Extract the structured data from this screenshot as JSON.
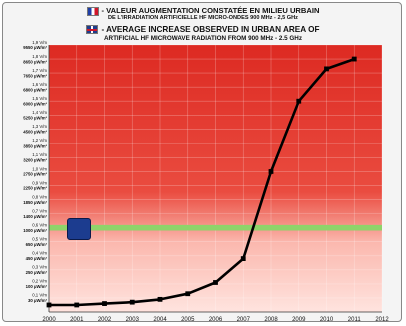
{
  "header": {
    "title_fr": "- VALEUR AUGMENTATION CONSTATÉE EN MILIEU URBAIN",
    "subtitle_fr": "DE L'IRRADIATION ARTIFICIELLE HF MICRO-ONDES 900 MHz - 2,5 GHz",
    "title_en": "- AVERAGE INCREASE OBSERVED IN URBAN AREA OF",
    "subtitle_en": "ARTIFICIAL HF MICROWAVE RADIATION FROM 900 MHz - 2.5 GHz"
  },
  "icons": {
    "flag_fr": "france-flag-icon",
    "flag_uk": "uk-flag-icon",
    "badge": "certification-seal-icon"
  },
  "colors": {
    "danger_zone": "#e03a2e",
    "transition_zone": "#ffc7bf",
    "safe_band": "#8ed36a",
    "line": "#000000"
  },
  "chart_data": {
    "type": "line",
    "title": "",
    "xlabel": "",
    "ylabel": "",
    "x": [
      2000,
      2001,
      2002,
      2003,
      2004,
      2005,
      2006,
      2007,
      2008,
      2009,
      2010,
      2011
    ],
    "series": [
      {
        "values": [
          0.05,
          0.05,
          0.06,
          0.07,
          0.09,
          0.13,
          0.21,
          0.38,
          1.0,
          1.5,
          1.73,
          1.8
        ]
      }
    ],
    "xlim": [
      2000,
      2012
    ],
    "x_ticks": [
      "2000",
      "2001",
      "2002",
      "2003",
      "2004",
      "2005",
      "2006",
      "2007",
      "2008",
      "2009",
      "2010",
      "2011",
      "2012"
    ],
    "ylim": [
      0,
      1.9
    ],
    "y_ticks": [
      {
        "v": 1.9,
        "vm": "1,9 V/m",
        "uw": "9550 µW/m²"
      },
      {
        "v": 1.8,
        "vm": "1,8 V/m",
        "uw": "8650 µW/m²"
      },
      {
        "v": 1.7,
        "vm": "1,7 V/m",
        "uw": "7650 µW/m²"
      },
      {
        "v": 1.6,
        "vm": "1,6 V/m",
        "uw": "6800 µW/m²"
      },
      {
        "v": 1.5,
        "vm": "1,5 V/m",
        "uw": "6000 µW/m²"
      },
      {
        "v": 1.4,
        "vm": "1,4 V/m",
        "uw": "5250 µW/m²"
      },
      {
        "v": 1.3,
        "vm": "1,3 V/m",
        "uw": "4500 µW/m²"
      },
      {
        "v": 1.2,
        "vm": "1,2 V/m",
        "uw": "3850 µW/m²"
      },
      {
        "v": 1.1,
        "vm": "1,1 V/m",
        "uw": "3200 µW/m²"
      },
      {
        "v": 1.0,
        "vm": "1,0 V/m",
        "uw": "2750 µW/m²"
      },
      {
        "v": 0.9,
        "vm": "0,9 V/m",
        "uw": "2250 µW/m²"
      },
      {
        "v": 0.8,
        "vm": "0,8 V/m",
        "uw": "1850 µW/m²"
      },
      {
        "v": 0.7,
        "vm": "0,7 V/m",
        "uw": "1400 µW/m²"
      },
      {
        "v": 0.6,
        "vm": "0,6 V/m",
        "uw": "1000 µW/m²"
      },
      {
        "v": 0.5,
        "vm": "0,5 V/m",
        "uw": "650 µW/m²"
      },
      {
        "v": 0.4,
        "vm": "0,4 V/m",
        "uw": "450 µW/m²"
      },
      {
        "v": 0.3,
        "vm": "0,3 V/m",
        "uw": "250 µW/m²"
      },
      {
        "v": 0.2,
        "vm": "0,2 V/m",
        "uw": "100 µW/m²"
      },
      {
        "v": 0.1,
        "vm": "0,1 V/m",
        "uw": "30 µW/m²"
      }
    ],
    "safe_band": [
      0.58,
      0.62
    ],
    "grid": true,
    "legend": "none"
  }
}
